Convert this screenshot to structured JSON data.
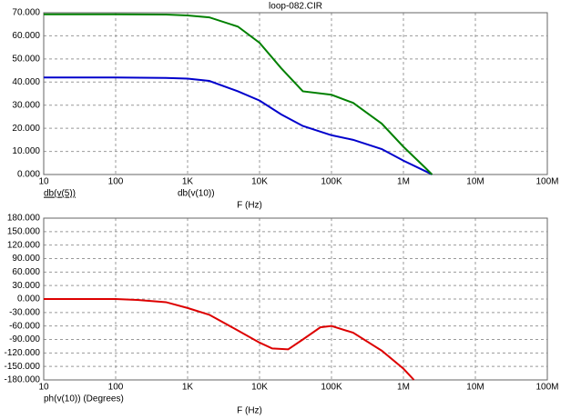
{
  "chart_data": [
    {
      "type": "line",
      "title": "loop-082.CIR",
      "x_label": "F (Hz)",
      "log_x": true,
      "grid": true,
      "xlim": [
        10,
        100000000
      ],
      "xticks": [
        10,
        100,
        {
          "value": 1000,
          "label": "1K"
        },
        {
          "value": 10000,
          "label": "10K"
        },
        {
          "value": 100000,
          "label": "100K"
        },
        {
          "value": 1000000,
          "label": "1M"
        },
        {
          "value": 10000000,
          "label": "10M"
        },
        {
          "value": 100000000,
          "label": "100M"
        }
      ],
      "ylim": [
        0,
        70
      ],
      "yticks": [
        {
          "value": 0,
          "label": "0.000"
        },
        {
          "value": 10,
          "label": "10.000"
        },
        {
          "value": 20,
          "label": "20.000"
        },
        {
          "value": 30,
          "label": "30.000"
        },
        {
          "value": 40,
          "label": "40.000"
        },
        {
          "value": 50,
          "label": "50.000"
        },
        {
          "value": 60,
          "label": "60.000"
        },
        {
          "value": 70,
          "label": "70.000"
        }
      ],
      "x": [
        10,
        100,
        500,
        1000,
        2000,
        5000,
        10000,
        20000,
        40000,
        100000,
        200000,
        500000,
        1000000,
        2000000,
        2500000
      ],
      "series": [
        {
          "name": "db(v(5))",
          "color": "#0000cc",
          "values": [
            42,
            42,
            41.8,
            41.5,
            40.5,
            36,
            32,
            26,
            21,
            17,
            15,
            11,
            6,
            1.5,
            0
          ]
        },
        {
          "name": "db(v(10))",
          "color": "#008000",
          "values": [
            69.3,
            69.3,
            69.2,
            68.8,
            68,
            64,
            57,
            46,
            36,
            34.5,
            31,
            22,
            12,
            3,
            0
          ]
        }
      ]
    },
    {
      "type": "line",
      "x_label": "F (Hz)",
      "log_x": true,
      "grid": true,
      "xlim": [
        10,
        100000000
      ],
      "xticks": [
        10,
        100,
        {
          "value": 1000,
          "label": "1K"
        },
        {
          "value": 10000,
          "label": "10K"
        },
        {
          "value": 100000,
          "label": "100K"
        },
        {
          "value": 1000000,
          "label": "1M"
        },
        {
          "value": 10000000,
          "label": "10M"
        },
        {
          "value": 100000000,
          "label": "100M"
        }
      ],
      "ylim": [
        -180,
        180
      ],
      "yticks": [
        {
          "value": -180,
          "label": "-180.000"
        },
        {
          "value": -150,
          "label": "-150.000"
        },
        {
          "value": -120,
          "label": "-120.000"
        },
        {
          "value": -90,
          "label": "-90.000"
        },
        {
          "value": -60,
          "label": "-60.000"
        },
        {
          "value": -30,
          "label": "-30.000"
        },
        {
          "value": 0,
          "label": "0.000"
        },
        {
          "value": 30,
          "label": "30.000"
        },
        {
          "value": 60,
          "label": "60.000"
        },
        {
          "value": 90,
          "label": "90.000"
        },
        {
          "value": 120,
          "label": "120.000"
        },
        {
          "value": 150,
          "label": "150.000"
        },
        {
          "value": 180,
          "label": "180.000"
        }
      ],
      "x": [
        10,
        100,
        200,
        500,
        1000,
        2000,
        5000,
        10000,
        15000,
        25000,
        40000,
        70000,
        100000,
        200000,
        500000,
        1000000,
        1400000
      ],
      "series": [
        {
          "name": "ph(v(10)) (Degrees)",
          "color": "#dd0000",
          "values": [
            0,
            0,
            -2,
            -7,
            -20,
            -35,
            -70,
            -97,
            -110,
            -112,
            -90,
            -63,
            -60,
            -75,
            -115,
            -155,
            -180
          ]
        }
      ]
    }
  ]
}
